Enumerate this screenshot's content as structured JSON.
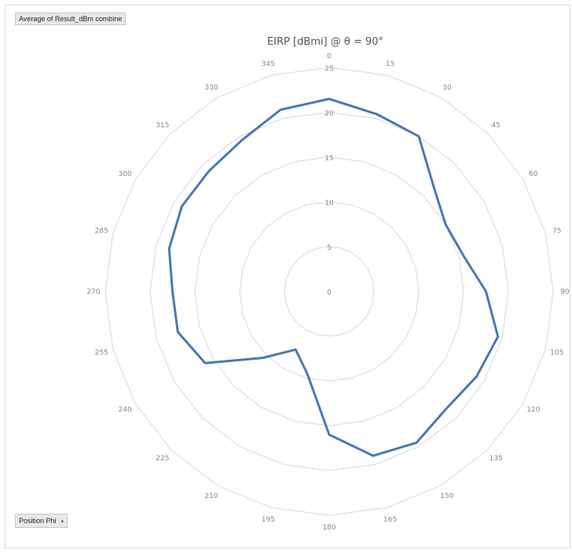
{
  "value_field_label": "Average of Result_dBm combine",
  "axis_field_label": "Position Phi",
  "dropdown_glyph": "▾",
  "colors": {
    "series": "#4a78b5",
    "grid": "#d9d9d9",
    "tick_text": "#888888",
    "title_text": "#555555"
  },
  "chart_data": {
    "type": "radar",
    "title": "EIRP [dBmi] @ θ = 90°",
    "categories": [
      "0",
      "15",
      "30",
      "45",
      "60",
      "75",
      "90",
      "105",
      "120",
      "135",
      "150",
      "165",
      "180",
      "195",
      "210",
      "225",
      "240",
      "255",
      "270",
      "285",
      "300",
      "315",
      "330",
      "345"
    ],
    "rticks": [
      0,
      5,
      10,
      15,
      20,
      25
    ],
    "rlim": [
      0,
      25
    ],
    "grid": true,
    "series": [
      {
        "name": "",
        "values": [
          21.5,
          20.5,
          20.0,
          16.5,
          15.0,
          15.5,
          17.5,
          19.5,
          19.0,
          18.5,
          19.5,
          19.0,
          16.0,
          9.5,
          7.5,
          10.5,
          16.0,
          17.5,
          17.5,
          18.5,
          19.0,
          19.0,
          19.5,
          21.0
        ]
      }
    ]
  }
}
